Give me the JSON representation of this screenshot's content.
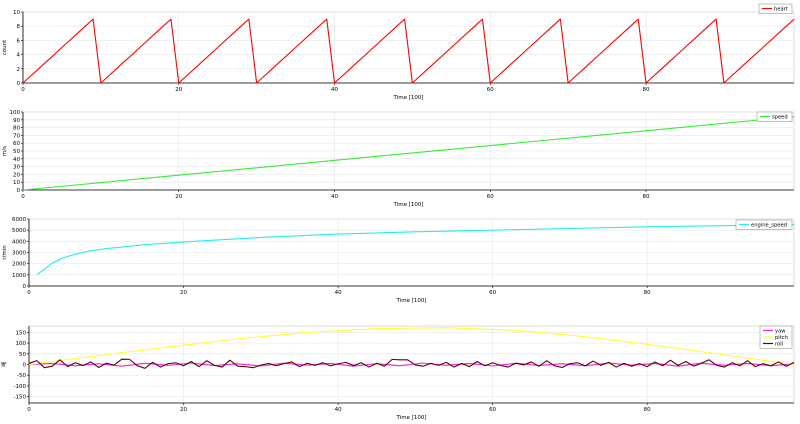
{
  "chart_data": [
    {
      "type": "line",
      "xlabel": "Time [100]",
      "ylabel": "count",
      "xlim": [
        0,
        99
      ],
      "ylim": [
        0,
        10
      ],
      "xticks": [
        0,
        20,
        40,
        60,
        80
      ],
      "yticks": [
        0,
        2,
        4,
        6,
        8,
        10
      ],
      "grid": true,
      "legend_position": "top-right",
      "series": [
        {
          "name": "heart",
          "color": "#ff0000",
          "x": [
            0,
            1,
            2,
            3,
            4,
            5,
            6,
            7,
            8,
            9,
            10,
            11,
            12,
            13,
            14,
            15,
            16,
            17,
            18,
            19,
            20,
            21,
            22,
            23,
            24,
            25,
            26,
            27,
            28,
            29,
            30,
            31,
            32,
            33,
            34,
            35,
            36,
            37,
            38,
            39,
            40,
            41,
            42,
            43,
            44,
            45,
            46,
            47,
            48,
            49,
            50,
            51,
            52,
            53,
            54,
            55,
            56,
            57,
            58,
            59,
            60,
            61,
            62,
            63,
            64,
            65,
            66,
            67,
            68,
            69,
            70,
            71,
            72,
            73,
            74,
            75,
            76,
            77,
            78,
            79,
            80,
            81,
            82,
            83,
            84,
            85,
            86,
            87,
            88,
            89,
            90,
            91,
            92,
            93,
            94,
            95,
            96,
            97,
            98,
            99
          ],
          "y": [
            0,
            1,
            2,
            3,
            4,
            5,
            6,
            7,
            8,
            9,
            0,
            1,
            2,
            3,
            4,
            5,
            6,
            7,
            8,
            9,
            0,
            1,
            2,
            3,
            4,
            5,
            6,
            7,
            8,
            9,
            0,
            1,
            2,
            3,
            4,
            5,
            6,
            7,
            8,
            9,
            0,
            1,
            2,
            3,
            4,
            5,
            6,
            7,
            8,
            9,
            0,
            1,
            2,
            3,
            4,
            5,
            6,
            7,
            8,
            9,
            0,
            1,
            2,
            3,
            4,
            5,
            6,
            7,
            8,
            9,
            0,
            1,
            2,
            3,
            4,
            5,
            6,
            7,
            8,
            9,
            0,
            1,
            2,
            3,
            4,
            5,
            6,
            7,
            8,
            9,
            0,
            1,
            2,
            3,
            4,
            5,
            6,
            7,
            8,
            9
          ]
        }
      ]
    },
    {
      "type": "line",
      "xlabel": "Time [100]",
      "ylabel": "m/s",
      "xlim": [
        0,
        99
      ],
      "ylim": [
        0,
        100
      ],
      "xticks": [
        0,
        20,
        40,
        60,
        80
      ],
      "yticks": [
        0,
        10,
        20,
        30,
        40,
        50,
        60,
        70,
        80,
        90,
        100
      ],
      "grid": true,
      "legend_position": "top-right",
      "series": [
        {
          "name": "speed",
          "color": "#33ee33",
          "x": [
            0,
            99
          ],
          "y": [
            0,
            94
          ]
        }
      ]
    },
    {
      "type": "line",
      "xlabel": "Time [100]",
      "ylabel": "r/min",
      "xlim": [
        0,
        99
      ],
      "ylim": [
        0,
        6000
      ],
      "xticks": [
        0,
        20,
        40,
        60,
        80
      ],
      "yticks": [
        0,
        1000,
        2000,
        3000,
        4000,
        5000,
        6000
      ],
      "grid": true,
      "legend_position": "top-right",
      "series": [
        {
          "name": "engine_speed",
          "color": "#22eeee",
          "x": [
            1,
            1.5,
            2,
            3,
            4,
            5,
            6,
            8,
            10,
            15,
            20,
            30,
            40,
            50,
            60,
            70,
            80,
            90,
            99
          ],
          "y": [
            1000,
            1250,
            1500,
            2050,
            2400,
            2650,
            2850,
            3150,
            3350,
            3700,
            3950,
            4350,
            4650,
            4850,
            5000,
            5150,
            5300,
            5400,
            5500
          ]
        }
      ]
    },
    {
      "type": "line",
      "xlabel": "Time [100]",
      "ylabel": "째",
      "xlim": [
        0,
        99
      ],
      "ylim": [
        -180,
        180
      ],
      "xticks": [
        0,
        20,
        40,
        60,
        80
      ],
      "yticks": [
        -150,
        -100,
        -50,
        0,
        50,
        100,
        150
      ],
      "grid": true,
      "legend_position": "top-right",
      "series": [
        {
          "name": "yaw",
          "color": "#ee22ee",
          "x": [
            0,
            3,
            6,
            9,
            12,
            15,
            18,
            21,
            24,
            27,
            30,
            33,
            36,
            39,
            42,
            45,
            48,
            51,
            54,
            57,
            60,
            63,
            66,
            69,
            72,
            75,
            78,
            81,
            84,
            87,
            90,
            93,
            96,
            99
          ],
          "y": [
            0,
            5,
            -6,
            4,
            -8,
            6,
            -4,
            7,
            -5,
            3,
            -7,
            6,
            -3,
            5,
            -8,
            4,
            -6,
            7,
            -4,
            5,
            -7,
            6,
            -5,
            4,
            -6,
            7,
            -3,
            5,
            -8,
            6,
            -4,
            5,
            -6,
            3
          ]
        },
        {
          "name": "pitch",
          "color": "#ffff33",
          "x": [
            0,
            9,
            18,
            27,
            36,
            45,
            54,
            63,
            72,
            81,
            90,
            99
          ],
          "y": [
            0,
            42,
            82,
            120,
            150,
            168,
            172,
            160,
            130,
            90,
            45,
            0
          ]
        },
        {
          "name": "roll",
          "color": "#660000",
          "x": [
            0,
            1,
            2,
            3,
            4,
            5,
            6,
            7,
            8,
            9,
            10,
            11,
            12,
            13,
            14,
            15,
            16,
            17,
            18,
            19,
            20,
            21,
            22,
            23,
            24,
            25,
            26,
            27,
            28,
            29,
            30,
            31,
            32,
            33,
            34,
            35,
            36,
            37,
            38,
            39,
            40,
            41,
            42,
            43,
            44,
            45,
            46,
            47,
            48,
            49,
            50,
            51,
            52,
            53,
            54,
            55,
            56,
            57,
            58,
            59,
            60,
            61,
            62,
            63,
            64,
            65,
            66,
            67,
            68,
            69,
            70,
            71,
            72,
            73,
            74,
            75,
            76,
            77,
            78,
            79,
            80,
            81,
            82,
            83,
            84,
            85,
            86,
            87,
            88,
            89,
            90,
            91,
            92,
            93,
            94,
            95,
            96,
            97,
            98,
            99
          ],
          "y": [
            5,
            18,
            -15,
            -8,
            22,
            -10,
            8,
            -5,
            12,
            -14,
            6,
            -3,
            25,
            24,
            -5,
            -18,
            10,
            -12,
            4,
            8,
            -6,
            14,
            -10,
            18,
            -4,
            -12,
            20,
            -8,
            -10,
            -15,
            -3,
            5,
            -6,
            4,
            12,
            -10,
            6,
            -4,
            8,
            -6,
            3,
            10,
            -5,
            8,
            -12,
            6,
            -8,
            24,
            22,
            22,
            -2,
            -8,
            6,
            -4,
            10,
            -12,
            5,
            -10,
            14,
            -6,
            8,
            -4,
            -12,
            6,
            -2,
            12,
            -8,
            18,
            -6,
            -14,
            4,
            8,
            -6,
            16,
            -4,
            10,
            -12,
            6,
            -8,
            4,
            -10,
            12,
            -6,
            20,
            -4,
            14,
            -8,
            6,
            22,
            -4,
            -12,
            8,
            -6,
            18,
            -10,
            4,
            -6,
            12,
            -8,
            10
          ]
        }
      ]
    }
  ]
}
